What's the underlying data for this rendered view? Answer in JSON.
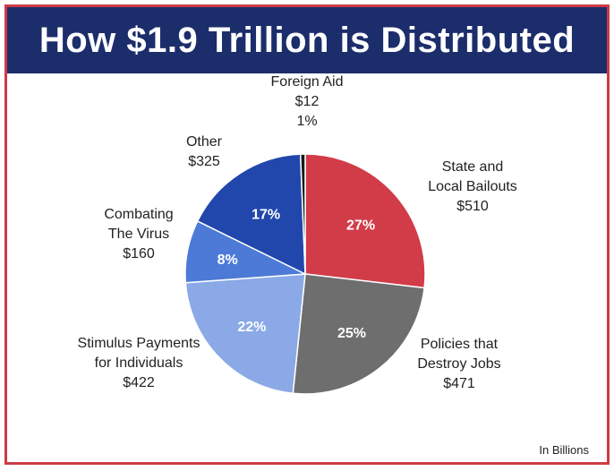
{
  "title": "How $1.9 Trillion is Distributed",
  "note": "In Billions",
  "chart_data": {
    "type": "pie",
    "title": "How $1.9 Trillion is Distributed",
    "unit_note": "In Billions",
    "slices": [
      {
        "label_lines": [
          "State and",
          "Local Bailouts"
        ],
        "value": 510,
        "value_label": "$510",
        "percent_label": "27%",
        "color": "#d13c48"
      },
      {
        "label_lines": [
          "Policies that",
          "Destroy Jobs"
        ],
        "value": 471,
        "value_label": "$471",
        "percent_label": "25%",
        "color": "#6e6e6e"
      },
      {
        "label_lines": [
          "Stimulus Payments",
          "for Individuals"
        ],
        "value": 422,
        "value_label": "$422",
        "percent_label": "22%",
        "color": "#8aa9e6"
      },
      {
        "label_lines": [
          "Combating",
          "The Virus"
        ],
        "value": 160,
        "value_label": "$160",
        "percent_label": "8%",
        "color": "#4c7ad6"
      },
      {
        "label_lines": [
          "Other"
        ],
        "value": 325,
        "value_label": "$325",
        "percent_label": "17%",
        "color": "#2147ac"
      },
      {
        "label_lines": [
          "Foreign Aid"
        ],
        "value": 12,
        "value_label": "$12",
        "percent_label": "1%",
        "color": "#1a1a1a"
      }
    ]
  }
}
